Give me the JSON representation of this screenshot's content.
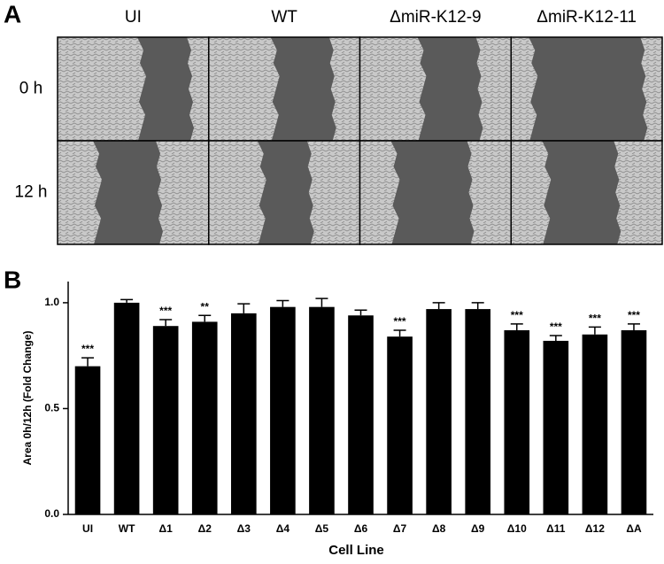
{
  "panel_a": {
    "label": "A",
    "columns": [
      "UI",
      "WT",
      "ΔmiR-K12-9",
      "ΔmiR-K12-11"
    ],
    "rows": [
      "0 h",
      "12 h"
    ]
  },
  "panel_b": {
    "label": "B"
  },
  "chart_data": {
    "type": "bar",
    "y_label": "Area 0h/12h (Fold Change)",
    "x_label": "Cell Line",
    "categories": [
      "UI",
      "WT",
      "Δ1",
      "Δ2",
      "Δ3",
      "Δ4",
      "Δ5",
      "Δ6",
      "Δ7",
      "Δ8",
      "Δ9",
      "Δ10",
      "Δ11",
      "Δ12",
      "ΔA"
    ],
    "values": [
      0.7,
      1.0,
      0.89,
      0.91,
      0.95,
      0.98,
      0.98,
      0.94,
      0.84,
      0.97,
      0.97,
      0.87,
      0.82,
      0.85,
      0.87
    ],
    "errors": [
      0.04,
      0.015,
      0.03,
      0.03,
      0.045,
      0.03,
      0.04,
      0.025,
      0.03,
      0.03,
      0.03,
      0.03,
      0.025,
      0.035,
      0.03
    ],
    "annotations": [
      "***",
      null,
      "***",
      "**",
      null,
      null,
      null,
      null,
      "***",
      null,
      null,
      "***",
      "***",
      "***",
      "***"
    ],
    "color": "#000000",
    "ylim": [
      0,
      1.1
    ],
    "yticks": [
      {
        "value": 0,
        "label": "0.0"
      },
      0.5,
      {
        "value": 1,
        "label": "1.0"
      }
    ]
  }
}
